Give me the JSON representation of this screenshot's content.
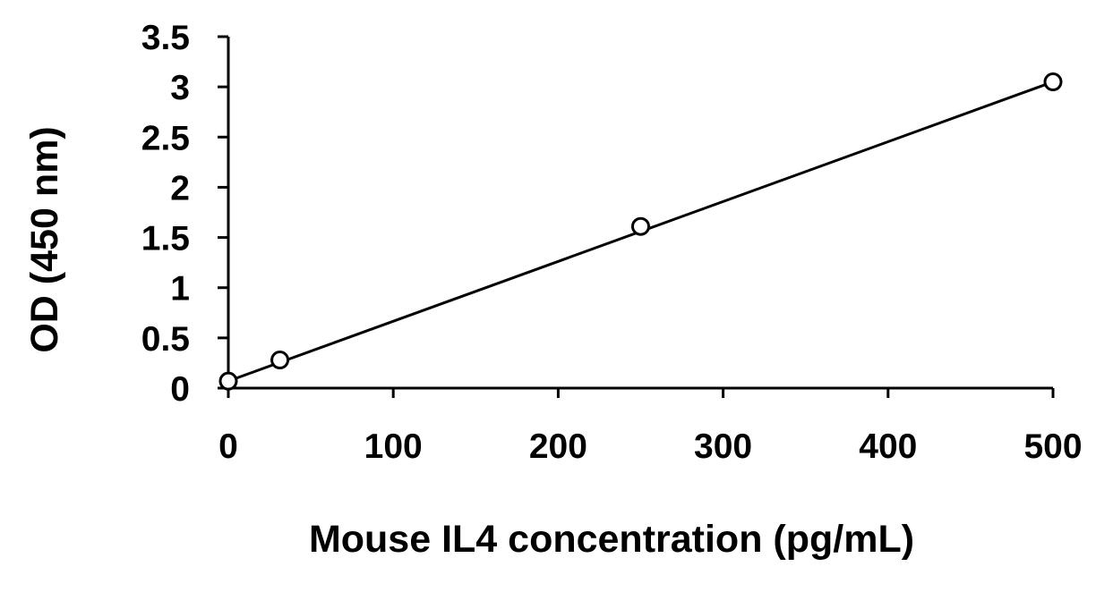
{
  "chart_data": {
    "type": "scatter",
    "title": "",
    "xlabel": "Mouse IL4 concentration (pg/mL)",
    "ylabel": "OD (450 nm)",
    "xlim": [
      0,
      500
    ],
    "ylim": [
      0,
      3.5
    ],
    "x_ticks": [
      "0",
      "100",
      "200",
      "300",
      "400",
      "500"
    ],
    "y_ticks": [
      "0",
      "0.5",
      "1",
      "1.5",
      "2",
      "2.5",
      "3",
      "3.5"
    ],
    "grid": false,
    "legend": "none",
    "marker": "open-circle",
    "colors": {
      "line": "#000000",
      "marker_fill": "#ffffff"
    },
    "series": [
      {
        "x": [
          0,
          31.25,
          250,
          500
        ],
        "y": [
          0.07,
          0.28,
          1.61,
          3.05
        ],
        "fit_line": {
          "x": [
            0,
            500
          ],
          "y": [
            0.07,
            3.05
          ]
        }
      }
    ]
  }
}
